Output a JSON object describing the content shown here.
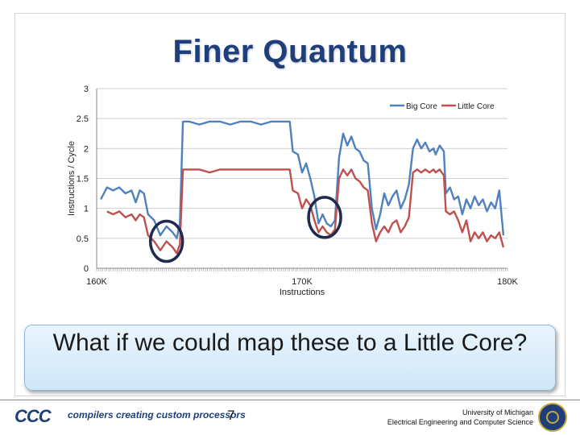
{
  "slide": {
    "title": "Finer Quantum",
    "callout": "What if we could map these to a Little Core?",
    "page_number": "7",
    "logo_text": "CCC",
    "tagline": "compilers creating custom processors",
    "university_line1": "University of Michigan",
    "university_line2": "Electrical Engineering and Computer Science"
  },
  "chart_data": {
    "type": "line",
    "title": "",
    "xlabel": "Instructions",
    "ylabel": "Instructions / Cycle",
    "ylim": [
      0,
      3
    ],
    "yticks": [
      "0",
      "0.5",
      "1",
      "1.5",
      "2",
      "2.5",
      "3"
    ],
    "xlim": [
      160,
      180
    ],
    "xticks": [
      {
        "value": 160,
        "label": "160K"
      },
      {
        "value": 170,
        "label": "170K"
      },
      {
        "value": 180,
        "label": "180K"
      }
    ],
    "legend_position": "top-right",
    "colors": {
      "big": "#4f81bd",
      "little": "#c0504d",
      "circle": "#1f2a4f"
    },
    "series": [
      {
        "name": "Big Core",
        "points": [
          [
            160.2,
            1.15
          ],
          [
            160.5,
            1.35
          ],
          [
            160.8,
            1.3
          ],
          [
            161.1,
            1.35
          ],
          [
            161.4,
            1.25
          ],
          [
            161.7,
            1.3
          ],
          [
            161.9,
            1.1
          ],
          [
            162.1,
            1.3
          ],
          [
            162.3,
            1.25
          ],
          [
            162.5,
            0.9
          ],
          [
            162.8,
            0.8
          ],
          [
            163.1,
            0.55
          ],
          [
            163.4,
            0.7
          ],
          [
            163.7,
            0.6
          ],
          [
            163.9,
            0.5
          ],
          [
            164.05,
            0.75
          ],
          [
            164.2,
            2.45
          ],
          [
            164.5,
            2.45
          ],
          [
            165.0,
            2.4
          ],
          [
            165.5,
            2.45
          ],
          [
            166.0,
            2.45
          ],
          [
            166.5,
            2.4
          ],
          [
            167.0,
            2.45
          ],
          [
            167.5,
            2.45
          ],
          [
            168.0,
            2.4
          ],
          [
            168.5,
            2.45
          ],
          [
            169.0,
            2.45
          ],
          [
            169.4,
            2.45
          ],
          [
            169.55,
            1.95
          ],
          [
            169.8,
            1.9
          ],
          [
            170.0,
            1.6
          ],
          [
            170.2,
            1.75
          ],
          [
            170.4,
            1.5
          ],
          [
            170.6,
            1.2
          ],
          [
            170.8,
            0.75
          ],
          [
            171.0,
            0.9
          ],
          [
            171.2,
            0.75
          ],
          [
            171.4,
            0.7
          ],
          [
            171.6,
            0.8
          ],
          [
            171.8,
            1.85
          ],
          [
            172.0,
            2.25
          ],
          [
            172.2,
            2.05
          ],
          [
            172.4,
            2.2
          ],
          [
            172.6,
            2.0
          ],
          [
            172.8,
            1.95
          ],
          [
            173.0,
            1.8
          ],
          [
            173.2,
            1.75
          ],
          [
            173.4,
            1.0
          ],
          [
            173.6,
            0.65
          ],
          [
            173.8,
            0.9
          ],
          [
            174.0,
            1.25
          ],
          [
            174.2,
            1.05
          ],
          [
            174.4,
            1.2
          ],
          [
            174.6,
            1.3
          ],
          [
            174.8,
            1.0
          ],
          [
            175.0,
            1.15
          ],
          [
            175.2,
            1.4
          ],
          [
            175.4,
            2.0
          ],
          [
            175.6,
            2.15
          ],
          [
            175.8,
            2.0
          ],
          [
            176.0,
            2.1
          ],
          [
            176.2,
            1.95
          ],
          [
            176.4,
            2.0
          ],
          [
            176.5,
            1.9
          ],
          [
            176.7,
            2.05
          ],
          [
            176.9,
            1.95
          ],
          [
            177.0,
            1.25
          ],
          [
            177.2,
            1.35
          ],
          [
            177.4,
            1.15
          ],
          [
            177.6,
            1.2
          ],
          [
            177.8,
            0.9
          ],
          [
            178.0,
            1.15
          ],
          [
            178.2,
            1.0
          ],
          [
            178.4,
            1.2
          ],
          [
            178.6,
            1.05
          ],
          [
            178.8,
            1.15
          ],
          [
            179.0,
            0.95
          ],
          [
            179.2,
            1.1
          ],
          [
            179.4,
            1.0
          ],
          [
            179.6,
            1.3
          ],
          [
            179.8,
            0.55
          ]
        ]
      },
      {
        "name": "Little Core",
        "points": [
          [
            160.5,
            0.95
          ],
          [
            160.8,
            0.9
          ],
          [
            161.1,
            0.95
          ],
          [
            161.4,
            0.85
          ],
          [
            161.7,
            0.9
          ],
          [
            161.9,
            0.8
          ],
          [
            162.1,
            0.9
          ],
          [
            162.3,
            0.85
          ],
          [
            162.5,
            0.55
          ],
          [
            162.8,
            0.45
          ],
          [
            163.1,
            0.3
          ],
          [
            163.4,
            0.45
          ],
          [
            163.7,
            0.35
          ],
          [
            163.9,
            0.25
          ],
          [
            164.05,
            0.4
          ],
          [
            164.2,
            1.65
          ],
          [
            164.5,
            1.65
          ],
          [
            165.0,
            1.65
          ],
          [
            165.5,
            1.6
          ],
          [
            166.0,
            1.65
          ],
          [
            166.5,
            1.65
          ],
          [
            167.0,
            1.65
          ],
          [
            167.5,
            1.65
          ],
          [
            168.0,
            1.65
          ],
          [
            168.5,
            1.65
          ],
          [
            169.0,
            1.65
          ],
          [
            169.4,
            1.65
          ],
          [
            169.55,
            1.3
          ],
          [
            169.8,
            1.25
          ],
          [
            170.0,
            1.0
          ],
          [
            170.2,
            1.15
          ],
          [
            170.4,
            1.05
          ],
          [
            170.6,
            0.8
          ],
          [
            170.8,
            0.6
          ],
          [
            171.0,
            0.7
          ],
          [
            171.2,
            0.6
          ],
          [
            171.4,
            0.55
          ],
          [
            171.6,
            0.65
          ],
          [
            171.8,
            1.5
          ],
          [
            172.0,
            1.65
          ],
          [
            172.2,
            1.55
          ],
          [
            172.4,
            1.65
          ],
          [
            172.6,
            1.5
          ],
          [
            172.8,
            1.45
          ],
          [
            173.0,
            1.35
          ],
          [
            173.2,
            1.3
          ],
          [
            173.4,
            0.75
          ],
          [
            173.6,
            0.45
          ],
          [
            173.8,
            0.6
          ],
          [
            174.0,
            0.7
          ],
          [
            174.2,
            0.6
          ],
          [
            174.4,
            0.75
          ],
          [
            174.6,
            0.8
          ],
          [
            174.8,
            0.6
          ],
          [
            175.0,
            0.7
          ],
          [
            175.2,
            0.85
          ],
          [
            175.4,
            1.6
          ],
          [
            175.6,
            1.65
          ],
          [
            175.8,
            1.6
          ],
          [
            176.0,
            1.65
          ],
          [
            176.2,
            1.6
          ],
          [
            176.4,
            1.65
          ],
          [
            176.5,
            1.6
          ],
          [
            176.7,
            1.65
          ],
          [
            176.9,
            1.55
          ],
          [
            177.0,
            0.95
          ],
          [
            177.2,
            0.9
          ],
          [
            177.4,
            0.95
          ],
          [
            177.6,
            0.8
          ],
          [
            177.8,
            0.6
          ],
          [
            178.0,
            0.8
          ],
          [
            178.2,
            0.45
          ],
          [
            178.4,
            0.6
          ],
          [
            178.6,
            0.5
          ],
          [
            178.8,
            0.6
          ],
          [
            179.0,
            0.45
          ],
          [
            179.2,
            0.55
          ],
          [
            179.4,
            0.5
          ],
          [
            179.6,
            0.6
          ],
          [
            179.8,
            0.35
          ]
        ]
      }
    ],
    "annotations": [
      {
        "type": "circle",
        "x": 163.4,
        "y": 0.45
      },
      {
        "type": "circle",
        "x": 171.1,
        "y": 0.85
      }
    ]
  }
}
